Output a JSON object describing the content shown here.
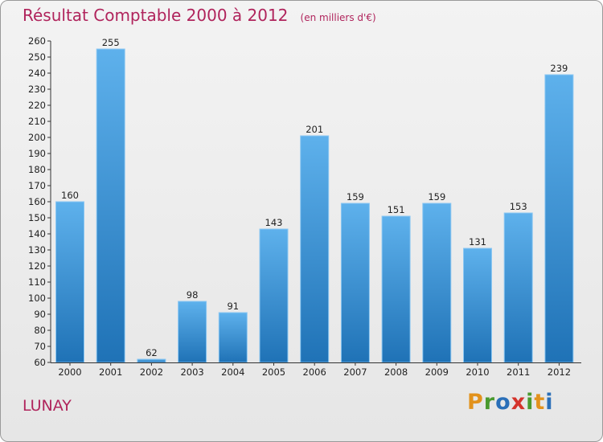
{
  "header": {
    "title": "Résultat Comptable 2000 à 2012",
    "subtitle": "(en milliers d'€)"
  },
  "location": "LUNAY",
  "brand": {
    "letters": [
      "P",
      "r",
      "o",
      "x",
      "i",
      "t",
      "i"
    ],
    "colors": [
      "#e2921c",
      "#4a9a2e",
      "#2a6fb8",
      "#d4332b",
      "#4a9a2e",
      "#e2921c",
      "#2a6fb8"
    ]
  },
  "colors": {
    "title": "#b0245c",
    "bar_top": "#5eb1ec",
    "bar_bottom": "#1f72b6",
    "axis": "#333333"
  },
  "chart_data": {
    "type": "bar",
    "title": "Résultat Comptable 2000 à 2012",
    "subtitle": "(en milliers d'€)",
    "categories": [
      "2000",
      "2001",
      "2002",
      "2003",
      "2004",
      "2005",
      "2006",
      "2007",
      "2008",
      "2009",
      "2010",
      "2011",
      "2012"
    ],
    "values": [
      160,
      255,
      62,
      98,
      91,
      143,
      201,
      159,
      151,
      159,
      131,
      153,
      239
    ],
    "ylim": [
      60,
      260
    ],
    "ytick_step": 10,
    "xlabel": "",
    "ylabel": "",
    "grid": false,
    "legend": "none"
  }
}
